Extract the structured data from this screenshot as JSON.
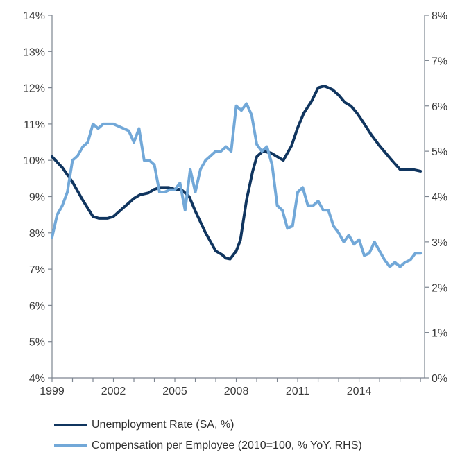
{
  "chart_data": {
    "type": "line",
    "x_range": [
      1999,
      2017.2
    ],
    "x_ticks": [
      1999,
      2002,
      2005,
      2008,
      2011,
      2014
    ],
    "y_left": {
      "range": [
        4,
        14
      ],
      "ticks": [
        4,
        5,
        6,
        7,
        8,
        9,
        10,
        11,
        12,
        13,
        14
      ],
      "tick_labels": [
        "4%",
        "5%",
        "6%",
        "7%",
        "8%",
        "9%",
        "10%",
        "11%",
        "12%",
        "13%",
        "14%"
      ]
    },
    "y_right": {
      "range": [
        0,
        8
      ],
      "ticks": [
        0,
        1,
        2,
        3,
        4,
        5,
        6,
        7,
        8
      ],
      "tick_labels": [
        "0%",
        "1%",
        "2%",
        "3%",
        "4%",
        "5%",
        "6%",
        "7%",
        "8%"
      ]
    },
    "grid": false,
    "legend_position": "bottom",
    "series": [
      {
        "name": "Unemployment Rate (SA, %)",
        "axis": "left",
        "color": "#10355f",
        "x": [
          1999.0,
          1999.5,
          2000.0,
          2000.5,
          2001.0,
          2001.3,
          2001.7,
          2002.0,
          2002.3,
          2002.7,
          2003.0,
          2003.3,
          2003.7,
          2004.0,
          2004.3,
          2004.7,
          2005.0,
          2005.3,
          2005.7,
          2006.0,
          2006.5,
          2007.0,
          2007.3,
          2007.5,
          2007.7,
          2008.0,
          2008.2,
          2008.5,
          2008.8,
          2009.0,
          2009.3,
          2009.7,
          2010.0,
          2010.3,
          2010.7,
          2011.0,
          2011.3,
          2011.7,
          2012.0,
          2012.3,
          2012.7,
          2013.0,
          2013.3,
          2013.6,
          2013.9,
          2014.2,
          2014.6,
          2015.0,
          2015.3,
          2015.6,
          2016.0,
          2016.3,
          2016.6,
          2017.0
        ],
        "values": [
          10.1,
          9.8,
          9.4,
          8.9,
          8.45,
          8.4,
          8.4,
          8.45,
          8.6,
          8.8,
          8.95,
          9.05,
          9.1,
          9.2,
          9.25,
          9.25,
          9.2,
          9.2,
          9.0,
          8.6,
          8.0,
          7.5,
          7.4,
          7.3,
          7.28,
          7.5,
          7.8,
          8.9,
          9.7,
          10.1,
          10.25,
          10.2,
          10.1,
          10.0,
          10.4,
          10.9,
          11.3,
          11.65,
          12.0,
          12.05,
          11.95,
          11.8,
          11.6,
          11.5,
          11.3,
          11.05,
          10.7,
          10.4,
          10.2,
          10.0,
          9.75,
          9.75,
          9.75,
          9.7
        ]
      },
      {
        "name": "Compensation per Employee (2010=100, % YoY. RHS)",
        "axis": "right",
        "color": "#72a8d8",
        "x": [
          1999.0,
          1999.25,
          1999.5,
          1999.75,
          2000.0,
          2000.25,
          2000.5,
          2000.75,
          2001.0,
          2001.25,
          2001.5,
          2001.75,
          2002.0,
          2002.25,
          2002.5,
          2002.75,
          2003.0,
          2003.25,
          2003.5,
          2003.75,
          2004.0,
          2004.25,
          2004.5,
          2004.75,
          2005.0,
          2005.25,
          2005.5,
          2005.75,
          2006.0,
          2006.25,
          2006.5,
          2006.75,
          2007.0,
          2007.25,
          2007.5,
          2007.75,
          2008.0,
          2008.25,
          2008.5,
          2008.75,
          2009.0,
          2009.25,
          2009.5,
          2009.75,
          2010.0,
          2010.25,
          2010.5,
          2010.75,
          2011.0,
          2011.25,
          2011.5,
          2011.75,
          2012.0,
          2012.25,
          2012.5,
          2012.75,
          2013.0,
          2013.25,
          2013.5,
          2013.75,
          2014.0,
          2014.25,
          2014.5,
          2014.75,
          2015.0,
          2015.25,
          2015.5,
          2015.75,
          2016.0,
          2016.25,
          2016.5,
          2016.75,
          2017.0
        ],
        "values": [
          3.1,
          3.6,
          3.8,
          4.1,
          4.8,
          4.9,
          5.1,
          5.2,
          5.6,
          5.5,
          5.6,
          5.6,
          5.6,
          5.55,
          5.5,
          5.45,
          5.2,
          5.5,
          4.8,
          4.8,
          4.7,
          4.1,
          4.1,
          4.15,
          4.15,
          4.3,
          3.7,
          4.6,
          4.1,
          4.6,
          4.8,
          4.9,
          5.0,
          5.0,
          5.1,
          5.0,
          6.0,
          5.9,
          6.05,
          5.8,
          5.15,
          5.0,
          5.1,
          4.7,
          3.8,
          3.7,
          3.3,
          3.35,
          4.1,
          4.2,
          3.8,
          3.8,
          3.9,
          3.7,
          3.7,
          3.35,
          3.2,
          3.0,
          3.15,
          2.95,
          3.05,
          2.7,
          2.75,
          3.0,
          2.8,
          2.6,
          2.45,
          2.55,
          2.45,
          2.55,
          2.6,
          2.75,
          2.75
        ]
      }
    ]
  }
}
